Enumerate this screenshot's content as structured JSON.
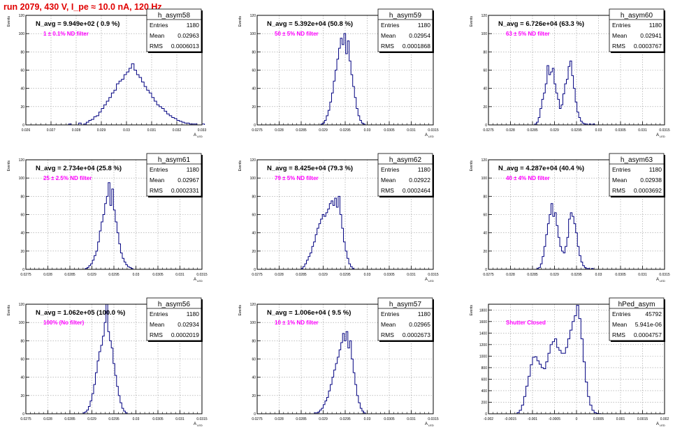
{
  "page": {
    "run_title": "run 2079,   430 V, I_pe ≈ 10.0 nA, 120 Hz"
  },
  "style": {
    "hist_color": "#000080",
    "label_color": "#ff00ff",
    "title_color": "#e00000"
  },
  "stat_labels": {
    "entries": "Entries",
    "mean": "Mean",
    "rms": "RMS"
  },
  "chart_data": [
    {
      "type": "histogram",
      "name": "h_asym58",
      "xlabel": "A_LED",
      "ylabel": "Events",
      "nav": "N_avg = 9.949e+02 ( 0.9 %)",
      "filter": "1 ± 0.1% ND filter",
      "stats": {
        "entries": "1180",
        "mean": "0.02963",
        "rms": "0.0006013"
      },
      "xlim": [
        0.026,
        0.033
      ],
      "ylim": [
        0,
        120
      ],
      "xticks": [
        {
          "v": 0.026,
          "l": "0.026"
        },
        {
          "v": 0.027,
          "l": "0.027"
        },
        {
          "v": 0.028,
          "l": "0.028"
        },
        {
          "v": 0.029,
          "l": "0.029"
        },
        {
          "v": 0.03,
          "l": "0.03"
        },
        {
          "v": 0.031,
          "l": "0.031"
        },
        {
          "v": 0.032,
          "l": "0.032"
        },
        {
          "v": 0.033,
          "l": "0.033"
        }
      ],
      "yticks": [
        0,
        20,
        40,
        60,
        80,
        100,
        120
      ],
      "bin_start": 0.0277,
      "bin_width": 0.0001,
      "values": [
        1,
        0,
        0,
        0,
        2,
        0,
        1,
        3,
        5,
        6,
        9,
        10,
        14,
        18,
        22,
        26,
        30,
        35,
        38,
        45,
        48,
        50,
        55,
        58,
        62,
        67,
        60,
        55,
        52,
        47,
        42,
        38,
        35,
        30,
        26,
        22,
        20,
        18,
        15,
        12,
        10,
        8,
        7,
        5,
        4,
        3,
        2,
        2,
        1,
        1,
        1,
        0,
        0,
        1
      ]
    },
    {
      "type": "histogram",
      "name": "h_asym59",
      "xlabel": "A_LED",
      "ylabel": "Events",
      "nav": "N_avg = 5.392e+04 (50.8 %)",
      "filter": "50 ± 5% ND filter",
      "stats": {
        "entries": "1180",
        "mean": "0.02954",
        "rms": "0.0001868"
      },
      "xlim": [
        0.0275,
        0.0315
      ],
      "ylim": [
        0,
        120
      ],
      "xticks": [
        {
          "v": 0.0275,
          "l": "0.0275"
        },
        {
          "v": 0.028,
          "l": "0.028"
        },
        {
          "v": 0.0285,
          "l": "0.0285"
        },
        {
          "v": 0.029,
          "l": "0.029"
        },
        {
          "v": 0.0295,
          "l": "0.0295"
        },
        {
          "v": 0.03,
          "l": "0.03"
        },
        {
          "v": 0.0305,
          "l": "0.0305"
        },
        {
          "v": 0.031,
          "l": "0.031"
        },
        {
          "v": 0.0315,
          "l": "0.0315"
        }
      ],
      "yticks": [
        0,
        20,
        40,
        60,
        80,
        100,
        120
      ],
      "bin_start": 0.02895,
      "bin_width": 4e-05,
      "values": [
        1,
        2,
        5,
        10,
        16,
        25,
        35,
        48,
        60,
        72,
        84,
        95,
        88,
        100,
        78,
        92,
        70,
        55,
        42,
        30,
        18,
        10,
        5,
        2,
        1
      ]
    },
    {
      "type": "histogram",
      "name": "h_asym60",
      "xlabel": "A_LED",
      "ylabel": "Events",
      "nav": "N_avg = 6.726e+04 (63.3 %)",
      "filter": "63 ± 5% ND filter",
      "stats": {
        "entries": "1180",
        "mean": "0.02941",
        "rms": "0.0003767"
      },
      "xlim": [
        0.0275,
        0.0315
      ],
      "ylim": [
        0,
        120
      ],
      "xticks": [
        {
          "v": 0.0275,
          "l": "0.0275"
        },
        {
          "v": 0.028,
          "l": "0.028"
        },
        {
          "v": 0.0285,
          "l": "0.0285"
        },
        {
          "v": 0.029,
          "l": "0.029"
        },
        {
          "v": 0.0295,
          "l": "0.0295"
        },
        {
          "v": 0.03,
          "l": "0.03"
        },
        {
          "v": 0.0305,
          "l": "0.0305"
        },
        {
          "v": 0.031,
          "l": "0.031"
        },
        {
          "v": 0.0315,
          "l": "0.0315"
        }
      ],
      "yticks": [
        0,
        20,
        40,
        60,
        80,
        100,
        120
      ],
      "bin_start": 0.02855,
      "bin_width": 4e-05,
      "values": [
        1,
        3,
        8,
        18,
        28,
        35,
        45,
        65,
        55,
        58,
        62,
        45,
        35,
        28,
        18,
        22,
        34,
        45,
        50,
        64,
        70,
        54,
        40,
        25,
        14,
        8,
        4,
        2,
        1,
        1,
        0,
        1,
        0,
        1
      ]
    },
    {
      "type": "histogram",
      "name": "h_asym61",
      "xlabel": "A_LED",
      "ylabel": "Events",
      "nav": "N_avg = 2.734e+04 (25.8 %)",
      "filter": "25 ± 2.5% ND filter",
      "stats": {
        "entries": "1180",
        "mean": "0.02967",
        "rms": "0.0002331"
      },
      "xlim": [
        0.0275,
        0.0315
      ],
      "ylim": [
        0,
        120
      ],
      "xticks": [
        {
          "v": 0.0275,
          "l": "0.0275"
        },
        {
          "v": 0.028,
          "l": "0.028"
        },
        {
          "v": 0.0285,
          "l": "0.0285"
        },
        {
          "v": 0.029,
          "l": "0.029"
        },
        {
          "v": 0.0295,
          "l": "0.0295"
        },
        {
          "v": 0.03,
          "l": "0.03"
        },
        {
          "v": 0.0305,
          "l": "0.0305"
        },
        {
          "v": 0.031,
          "l": "0.031"
        },
        {
          "v": 0.0315,
          "l": "0.0315"
        }
      ],
      "yticks": [
        0,
        20,
        40,
        60,
        80,
        100,
        120
      ],
      "bin_start": 0.02885,
      "bin_width": 4e-05,
      "values": [
        1,
        2,
        4,
        6,
        10,
        15,
        20,
        30,
        42,
        52,
        60,
        72,
        80,
        95,
        70,
        88,
        65,
        52,
        40,
        28,
        18,
        12,
        8,
        5,
        3,
        2,
        1
      ]
    },
    {
      "type": "histogram",
      "name": "h_asym62",
      "xlabel": "A_LED",
      "ylabel": "Events",
      "nav": "N_avg = 8.425e+04 (79.3 %)",
      "filter": "79 ± 5% ND filter",
      "stats": {
        "entries": "1180",
        "mean": "0.02922",
        "rms": "0.0002464"
      },
      "xlim": [
        0.0275,
        0.0315
      ],
      "ylim": [
        0,
        120
      ],
      "xticks": [
        {
          "v": 0.0275,
          "l": "0.0275"
        },
        {
          "v": 0.028,
          "l": "0.028"
        },
        {
          "v": 0.0285,
          "l": "0.0285"
        },
        {
          "v": 0.029,
          "l": "0.029"
        },
        {
          "v": 0.0295,
          "l": "0.0295"
        },
        {
          "v": 0.03,
          "l": "0.03"
        },
        {
          "v": 0.0305,
          "l": "0.0305"
        },
        {
          "v": 0.031,
          "l": "0.031"
        },
        {
          "v": 0.0315,
          "l": "0.0315"
        }
      ],
      "yticks": [
        0,
        20,
        40,
        60,
        80,
        100,
        120
      ],
      "bin_start": 0.0285,
      "bin_width": 4e-05,
      "values": [
        1,
        3,
        6,
        10,
        14,
        18,
        25,
        30,
        38,
        45,
        50,
        55,
        60,
        58,
        62,
        66,
        72,
        75,
        70,
        78,
        68,
        80,
        60,
        45,
        30,
        20,
        12,
        6,
        3,
        1
      ]
    },
    {
      "type": "histogram",
      "name": "h_asym63",
      "xlabel": "A_LED",
      "ylabel": "Events",
      "nav": "N_avg = 4.287e+04 (40.4 %)",
      "filter": "40 ± 4% ND filter",
      "stats": {
        "entries": "1180",
        "mean": "0.02938",
        "rms": "0.0003692"
      },
      "xlim": [
        0.0275,
        0.0315
      ],
      "ylim": [
        0,
        120
      ],
      "xticks": [
        {
          "v": 0.0275,
          "l": "0.0275"
        },
        {
          "v": 0.028,
          "l": "0.028"
        },
        {
          "v": 0.0285,
          "l": "0.0285"
        },
        {
          "v": 0.029,
          "l": "0.029"
        },
        {
          "v": 0.0295,
          "l": "0.0295"
        },
        {
          "v": 0.03,
          "l": "0.03"
        },
        {
          "v": 0.0305,
          "l": "0.0305"
        },
        {
          "v": 0.031,
          "l": "0.031"
        },
        {
          "v": 0.0315,
          "l": "0.0315"
        }
      ],
      "yticks": [
        0,
        20,
        40,
        60,
        80,
        100,
        120
      ],
      "bin_start": 0.0286,
      "bin_width": 4e-05,
      "values": [
        1,
        2,
        6,
        14,
        25,
        38,
        50,
        60,
        72,
        58,
        62,
        48,
        35,
        25,
        20,
        18,
        25,
        35,
        55,
        62,
        58,
        50,
        40,
        25,
        15,
        8,
        4,
        2,
        1,
        1,
        0,
        1
      ]
    },
    {
      "type": "histogram",
      "name": "h_asym56",
      "xlabel": "A_LED",
      "ylabel": "Events",
      "nav": "N_avg = 1.062e+05 (100.0 %)",
      "filter": "100% (No filter)",
      "stats": {
        "entries": "1180",
        "mean": "0.02934",
        "rms": "0.0002019"
      },
      "xlim": [
        0.0275,
        0.0315
      ],
      "ylim": [
        0,
        120
      ],
      "xticks": [
        {
          "v": 0.0275,
          "l": "0.0275"
        },
        {
          "v": 0.028,
          "l": "0.028"
        },
        {
          "v": 0.0285,
          "l": "0.0285"
        },
        {
          "v": 0.029,
          "l": "0.029"
        },
        {
          "v": 0.0295,
          "l": "0.0295"
        },
        {
          "v": 0.03,
          "l": "0.03"
        },
        {
          "v": 0.0305,
          "l": "0.0305"
        },
        {
          "v": 0.031,
          "l": "0.031"
        },
        {
          "v": 0.0315,
          "l": "0.0315"
        }
      ],
      "yticks": [
        0,
        20,
        40,
        60,
        80,
        100,
        120
      ],
      "bin_start": 0.0288,
      "bin_width": 4e-05,
      "values": [
        1,
        2,
        4,
        8,
        14,
        22,
        32,
        45,
        58,
        68,
        75,
        85,
        100,
        120,
        90,
        80,
        72,
        55,
        42,
        30,
        20,
        12,
        6,
        3,
        1
      ]
    },
    {
      "type": "histogram",
      "name": "h_asym57",
      "xlabel": "A_LED",
      "ylabel": "Events",
      "nav": "N_avg = 1.006e+04 ( 9.5 %)",
      "filter": "10 ± 1% ND filter",
      "stats": {
        "entries": "1180",
        "mean": "0.02965",
        "rms": "0.0002673"
      },
      "xlim": [
        0.0275,
        0.0315
      ],
      "ylim": [
        0,
        120
      ],
      "xticks": [
        {
          "v": 0.0275,
          "l": "0.0275"
        },
        {
          "v": 0.028,
          "l": "0.028"
        },
        {
          "v": 0.0285,
          "l": "0.0285"
        },
        {
          "v": 0.029,
          "l": "0.029"
        },
        {
          "v": 0.0295,
          "l": "0.0295"
        },
        {
          "v": 0.03,
          "l": "0.03"
        },
        {
          "v": 0.0305,
          "l": "0.0305"
        },
        {
          "v": 0.031,
          "l": "0.031"
        },
        {
          "v": 0.0315,
          "l": "0.0315"
        }
      ],
      "yticks": [
        0,
        20,
        40,
        60,
        80,
        100,
        120
      ],
      "bin_start": 0.0288,
      "bin_width": 4e-05,
      "values": [
        1,
        1,
        2,
        4,
        6,
        10,
        14,
        18,
        25,
        32,
        40,
        48,
        55,
        62,
        70,
        78,
        88,
        80,
        90,
        72,
        80,
        60,
        45,
        32,
        20,
        12,
        6,
        3,
        1
      ]
    },
    {
      "type": "histogram",
      "name": "hPed_asym",
      "xlabel": "A_LED",
      "ylabel": "Events",
      "nav": "",
      "filter": "Shutter Closed",
      "stats": {
        "entries": "45792",
        "mean": "5.941e-06",
        "rms": "0.0004757"
      },
      "xlim": [
        -0.002,
        0.002
      ],
      "ylim": [
        0,
        1900
      ],
      "xticks": [
        {
          "v": -0.002,
          "l": "-0.002"
        },
        {
          "v": -0.0015,
          "l": "-0.0015"
        },
        {
          "v": -0.001,
          "l": "-0.001"
        },
        {
          "v": -0.0005,
          "l": "-0.0005"
        },
        {
          "v": 0,
          "l": "0"
        },
        {
          "v": 0.0005,
          "l": "0.0005"
        },
        {
          "v": 0.001,
          "l": "0.001"
        },
        {
          "v": 0.0015,
          "l": "0.0015"
        },
        {
          "v": 0.002,
          "l": "0.002"
        }
      ],
      "yticks": [
        0,
        200,
        400,
        600,
        800,
        1000,
        1200,
        1400,
        1600,
        1800
      ],
      "bin_start": -0.00135,
      "bin_width": 5e-05,
      "values": [
        20,
        60,
        150,
        300,
        480,
        650,
        850,
        980,
        990,
        920,
        860,
        800,
        780,
        900,
        1050,
        1200,
        1250,
        1300,
        1150,
        1100,
        1050,
        1050,
        1150,
        1300,
        1450,
        1600,
        1700,
        1880,
        1650,
        1300,
        900,
        550,
        300,
        150,
        60,
        20,
        8,
        3
      ]
    }
  ]
}
